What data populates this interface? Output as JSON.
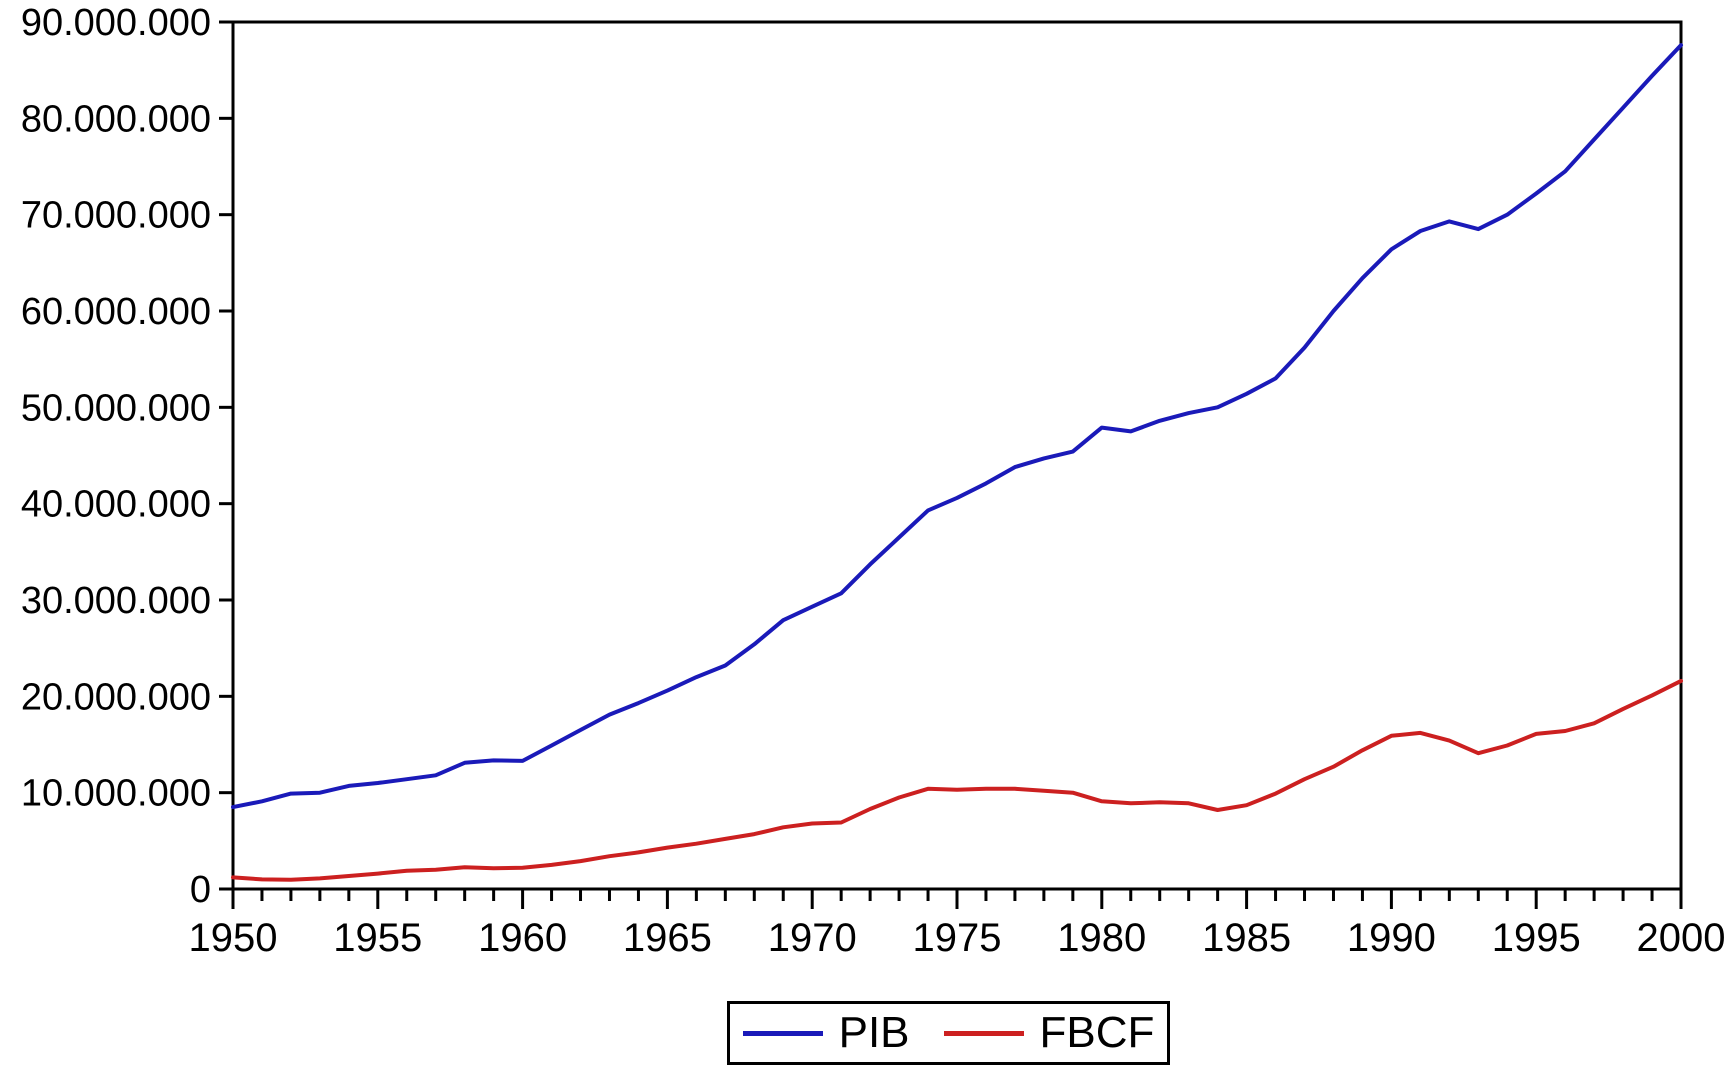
{
  "chart_data": {
    "type": "line",
    "title": "",
    "xlabel": "",
    "ylabel": "",
    "grid": false,
    "legend_position": "bottom-center",
    "ylim": [
      0,
      90000000
    ],
    "y_ticks": [
      0,
      10000000,
      20000000,
      30000000,
      40000000,
      50000000,
      60000000,
      70000000,
      80000000,
      90000000
    ],
    "y_tick_labels": [
      "0",
      "10.000.000",
      "20.000.000",
      "30.000.000",
      "40.000.000",
      "50.000.000",
      "60.000.000",
      "70.000.000",
      "80.000.000",
      "90.000.000"
    ],
    "x_tick_labels": [
      "1950",
      "1955",
      "1960",
      "1965",
      "1970",
      "1975",
      "1980",
      "1985",
      "1990",
      "1995",
      "2000"
    ],
    "x": [
      1950,
      1951,
      1952,
      1953,
      1954,
      1955,
      1956,
      1957,
      1958,
      1959,
      1960,
      1961,
      1962,
      1963,
      1964,
      1965,
      1966,
      1967,
      1968,
      1969,
      1970,
      1971,
      1972,
      1973,
      1974,
      1975,
      1976,
      1977,
      1978,
      1979,
      1980,
      1981,
      1982,
      1983,
      1984,
      1985,
      1986,
      1987,
      1988,
      1989,
      1990,
      1991,
      1992,
      1993,
      1994,
      1995,
      1996,
      1997,
      1998,
      1999,
      2000
    ],
    "series": [
      {
        "name": "PIB",
        "color": "#1a1ab9",
        "values": [
          8500000,
          9100000,
          9900000,
          10000000,
          10700000,
          11000000,
          11400000,
          11800000,
          13100000,
          13350000,
          13300000,
          14900000,
          16500000,
          18100000,
          19300000,
          20600000,
          22000000,
          23200000,
          25400000,
          27900000,
          29300000,
          30700000,
          33700000,
          36500000,
          39300000,
          40600000,
          42100000,
          43800000,
          44700000,
          45400000,
          47900000,
          47500000,
          48600000,
          49400000,
          50000000,
          51400000,
          53000000,
          56200000,
          60000000,
          63400000,
          66400000,
          68300000,
          69300000,
          68500000,
          70000000,
          72200000,
          74500000,
          77800000,
          81100000,
          84400000,
          87600000
        ]
      },
      {
        "name": "FBCF",
        "color": "#cc2020",
        "values": [
          1200000,
          1000000,
          950000,
          1100000,
          1350000,
          1600000,
          1900000,
          2000000,
          2250000,
          2150000,
          2200000,
          2500000,
          2900000,
          3400000,
          3800000,
          4300000,
          4700000,
          5200000,
          5700000,
          6400000,
          6800000,
          6900000,
          8300000,
          9500000,
          10400000,
          10300000,
          10400000,
          10400000,
          10200000,
          10000000,
          9100000,
          8900000,
          9000000,
          8900000,
          8200000,
          8700000,
          9900000,
          11400000,
          12700000,
          14400000,
          15900000,
          16200000,
          15400000,
          14100000,
          14900000,
          16100000,
          16400000,
          17200000,
          18700000,
          20100000,
          21600000
        ]
      }
    ]
  },
  "legend": {
    "items": [
      {
        "label": "PIB"
      },
      {
        "label": "FBCF"
      }
    ]
  }
}
